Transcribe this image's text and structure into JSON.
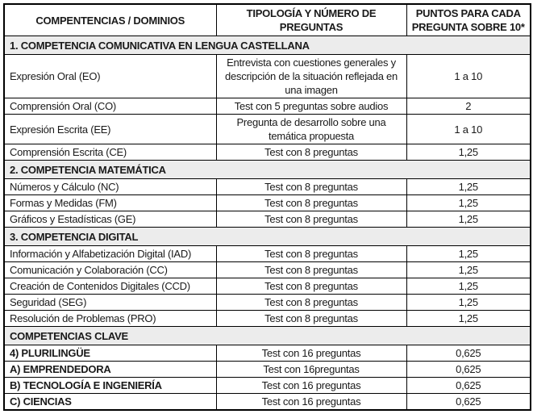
{
  "table": {
    "columns": [
      {
        "label": "COMPENTENCIAS / DOMINIOS"
      },
      {
        "label": "TIPOLOGÍA Y NÚMERO DE PREGUNTAS"
      },
      {
        "label": "PUNTOS PARA CADA PREGUNTA SOBRE 10*"
      }
    ],
    "rows": [
      {
        "kind": "section",
        "label": "1. COMPETENCIA COMUNICATIVA EN LENGUA CASTELLANA"
      },
      {
        "kind": "data",
        "domain": "Expresión Oral (EO)",
        "tipologia": "Entrevista con cuestiones generales y descripción de la situación reflejada en una imagen",
        "puntos": "1 a 10"
      },
      {
        "kind": "data",
        "domain": "Comprensión Oral (CO)",
        "tipologia": "Test con 5 preguntas sobre audios",
        "puntos": "2"
      },
      {
        "kind": "data",
        "domain": "Expresión Escrita (EE)",
        "tipologia": "Pregunta de desarrollo sobre una temática propuesta",
        "puntos": "1 a 10"
      },
      {
        "kind": "data",
        "domain": "Comprensión Escrita (CE)",
        "tipologia": "Test con 8 preguntas",
        "puntos": "1,25"
      },
      {
        "kind": "section",
        "label": "2. COMPETENCIA MATEMÁTICA"
      },
      {
        "kind": "data",
        "domain": "Números y Cálculo (NC)",
        "tipologia": "Test con 8 preguntas",
        "puntos": "1,25"
      },
      {
        "kind": "data",
        "domain": "Formas y Medidas (FM)",
        "tipologia": "Test con 8 preguntas",
        "puntos": "1,25"
      },
      {
        "kind": "data",
        "domain": "Gráficos y Estadísticas (GE)",
        "tipologia": "Test con 8 preguntas",
        "puntos": "1,25"
      },
      {
        "kind": "section",
        "label": "3. COMPETENCIA DIGITAL"
      },
      {
        "kind": "data",
        "domain": "Información y Alfabetización Digital (IAD)",
        "tipologia": "Test con 8 preguntas",
        "puntos": "1,25"
      },
      {
        "kind": "data",
        "domain": "Comunicación y Colaboración (CC)",
        "tipologia": "Test con 8 preguntas",
        "puntos": "1,25"
      },
      {
        "kind": "data",
        "domain": "Creación de Contenidos Digitales (CCD)",
        "tipologia": "Test con 8 preguntas",
        "puntos": "1,25"
      },
      {
        "kind": "data",
        "domain": "Seguridad (SEG)",
        "tipologia": "Test con 8 preguntas",
        "puntos": "1,25"
      },
      {
        "kind": "data",
        "domain": "Resolución de Problemas (PRO)",
        "tipologia": "Test con 8 preguntas",
        "puntos": "1,25"
      },
      {
        "kind": "section",
        "label": "COMPETENCIAS CLAVE"
      },
      {
        "kind": "data",
        "domain": "4) PLURILINGÜE",
        "tipologia": "Test con 16 preguntas",
        "puntos": "0,625"
      },
      {
        "kind": "data",
        "domain": "A) EMPRENDEDORA",
        "tipologia": "Test con 16preguntas",
        "puntos": "0,625"
      },
      {
        "kind": "data",
        "domain": "B) TECNOLOGÍA E INGENIERÍA",
        "tipologia": "Test con 16 preguntas",
        "puntos": "0,625"
      },
      {
        "kind": "data",
        "domain": "C) CIENCIAS",
        "tipologia": "Test con 16 preguntas",
        "puntos": "0,625"
      }
    ]
  }
}
